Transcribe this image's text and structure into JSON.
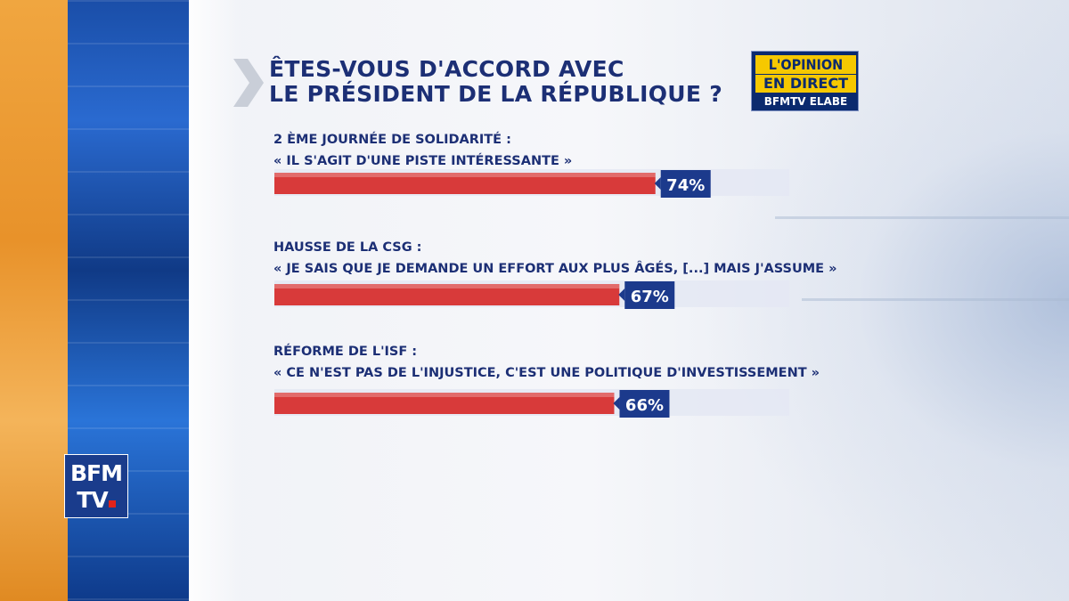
{
  "title": {
    "line1": "ÊTES-VOUS D'ACCORD AVEC",
    "line2": "LE PRÉSIDENT DE LA RÉPUBLIQUE ?"
  },
  "badge": {
    "line1": "L'OPINION",
    "line2": "EN DIRECT",
    "line3": "BFMTV ELABE"
  },
  "logo": {
    "line1": "BFM",
    "line2": "TV"
  },
  "items": [
    {
      "topic": "2 ÈME JOURNÉE DE SOLIDARITÉ :",
      "quote": "« IL S'AGIT D'UNE PISTE INTÉRESSANTE »",
      "value_label": "74%"
    },
    {
      "topic": "HAUSSE DE LA CSG :",
      "quote": "« JE SAIS QUE JE DEMANDE UN EFFORT AUX PLUS ÂGÉS, [...] MAIS J'ASSUME »",
      "value_label": "67%"
    },
    {
      "topic": "RÉFORME DE L'ISF :",
      "quote": "« CE N'EST PAS DE L'INJUSTICE, C'EST UNE POLITIQUE D'INVESTISSEMENT »",
      "value_label": "66%"
    }
  ],
  "colors": {
    "bar": "#d83a3a",
    "track": "#e4e8f3",
    "label_box": "#1c3a8c",
    "title": "#1c2f75",
    "accent": "#f6c800"
  },
  "chart_data": {
    "type": "bar",
    "orientation": "horizontal",
    "title": "ÊTES-VOUS D'ACCORD AVEC LE PRÉSIDENT DE LA RÉPUBLIQUE ?",
    "categories": [
      "2 ÈME JOURNÉE DE SOLIDARITÉ : « IL S'AGIT D'UNE PISTE INTÉRESSANTE »",
      "HAUSSE DE LA CSG : « JE SAIS QUE JE DEMANDE UN EFFORT AUX PLUS ÂGÉS, [...] MAIS J'ASSUME »",
      "RÉFORME DE L'ISF : « CE N'EST PAS DE L'INJUSTICE, C'EST UNE POLITIQUE D'INVESTISSEMENT »"
    ],
    "values": [
      74,
      67,
      66
    ],
    "unit": "%",
    "xlim": [
      0,
      100
    ],
    "grid": false,
    "legend": "none"
  }
}
